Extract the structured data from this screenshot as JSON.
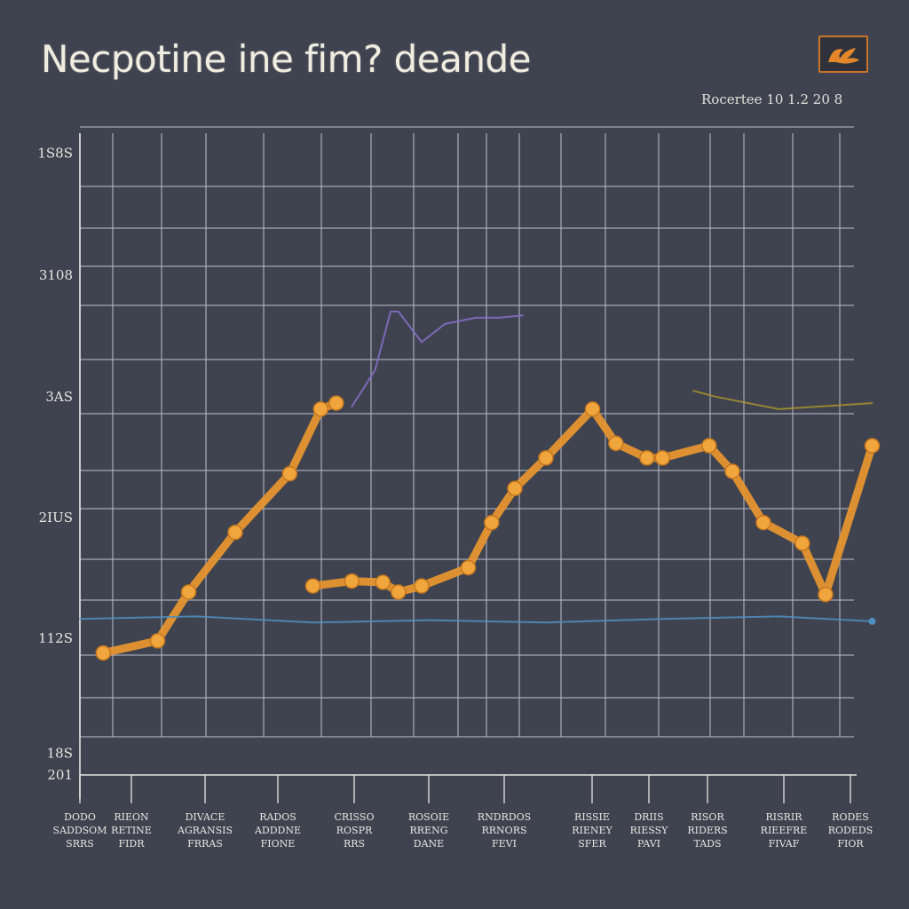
{
  "title": "Necpotine ine fim? deande",
  "subtitle": "Rocertee 10 1.2 20 8",
  "logo_icon": "orange-brand-logo-icon",
  "colors": {
    "background": "#3f434f",
    "grid": "#b8bcc8",
    "series_orange": "#e6952f",
    "series_purple": "#8a6fc9",
    "series_blue": "#4f8fc0",
    "series_olive": "#a8902f",
    "text": "#e8e6e2"
  },
  "chart_data": {
    "type": "line",
    "title": "Necpotine ine fim? deande",
    "subtitle": "Rocertee 10 1.2 20 8",
    "xlabel": "",
    "ylabel": "",
    "ytick_labels": [
      "18S",
      "112S",
      "2IUS",
      "3AS",
      "3108",
      "1S8S",
      "201"
    ],
    "ytick_values": [
      18,
      112,
      211,
      310,
      410,
      510,
      0
    ],
    "xtick_labels": [
      [
        "DODO",
        "SADDSOM",
        "SRRS"
      ],
      [
        "RIEON",
        "RETINE",
        "FIDR"
      ],
      [
        "DIVACE",
        "AGRANSIS",
        "FRRAS"
      ],
      [
        "RADOS",
        "ADDDNE",
        "FIONE"
      ],
      [
        "CRISSO",
        "ROSPR",
        "RRS"
      ],
      [
        "ROSOIE",
        "RRENG",
        "DANE"
      ],
      [
        "RNDRDOS",
        "RRNORS",
        "FEVI"
      ],
      [
        "RISSIE",
        "RIENEY",
        "SFER"
      ],
      [
        "DRIIS",
        "RIESSY",
        "PAVI"
      ],
      [
        "RISOR",
        "RIDERS",
        "TADS"
      ],
      [
        "RISRIR",
        "RIEEFRE",
        "FIVAF"
      ],
      [
        "RODES",
        "RODEDS",
        "FIOR"
      ]
    ],
    "grid": true,
    "ylim": [
      0,
      530
    ],
    "xlim": [
      0,
      100
    ],
    "series": [
      {
        "color": "#e6952f",
        "style": "thick-markers",
        "segments": [
          [
            [
              3,
              100
            ],
            [
              10,
              110
            ],
            [
              14,
              150
            ],
            [
              20,
              199
            ],
            [
              27,
              247
            ],
            [
              31,
              300
            ],
            [
              33,
              305
            ]
          ],
          [
            [
              30,
              155
            ],
            [
              35,
              159
            ],
            [
              39,
              158
            ],
            [
              41,
              150
            ],
            [
              44,
              155
            ],
            [
              50,
              170
            ],
            [
              53,
              207
            ],
            [
              56,
              235
            ],
            [
              60,
              260
            ],
            [
              66,
              300
            ],
            [
              69,
              272
            ],
            [
              73,
              260
            ],
            [
              75,
              260
            ],
            [
              81,
              270
            ],
            [
              84,
              249
            ],
            [
              88,
              207
            ],
            [
              93,
              190
            ],
            [
              96,
              148
            ],
            [
              102,
              270
            ]
          ]
        ]
      },
      {
        "color": "#8a6fc9",
        "style": "thin",
        "segments": [
          [
            [
              35,
              302
            ],
            [
              38,
              332
            ],
            [
              40,
              380
            ],
            [
              41,
              380
            ],
            [
              44,
              355
            ],
            [
              47,
              370
            ],
            [
              51,
              375
            ],
            [
              54,
              375
            ],
            [
              57,
              377
            ]
          ]
        ]
      },
      {
        "color": "#4f8fc0",
        "style": "thin",
        "segments": [
          [
            [
              0,
              128
            ],
            [
              15,
              130
            ],
            [
              30,
              125
            ],
            [
              45,
              127
            ],
            [
              60,
              125
            ],
            [
              75,
              128
            ],
            [
              90,
              130
            ],
            [
              102,
              126
            ]
          ]
        ]
      },
      {
        "color": "#a8902f",
        "style": "thin",
        "segments": [
          [
            [
              79,
              315
            ],
            [
              82,
              310
            ],
            [
              90,
              300
            ],
            [
              102,
              305
            ]
          ]
        ]
      }
    ]
  }
}
